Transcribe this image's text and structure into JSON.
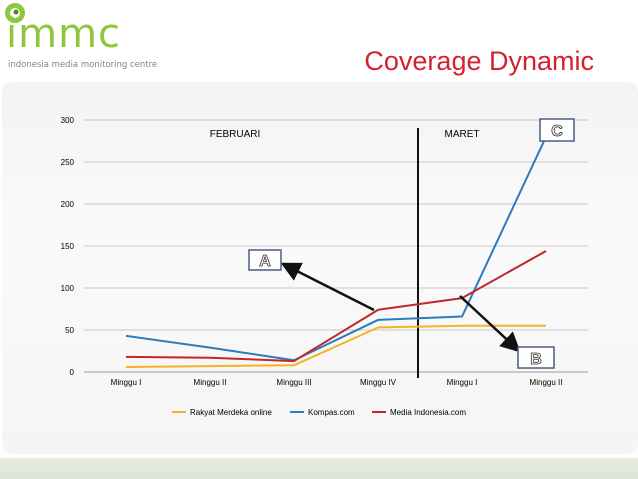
{
  "header": {
    "logo_text": "immc",
    "logo_tagline": "indonesia media monitoring centre",
    "title": "Coverage Dynamic"
  },
  "chart_data": {
    "type": "line",
    "categories": [
      "Minggu I",
      "Minggu II",
      "Minggu III",
      "Minggu IV",
      "Minggu I",
      "Minggu II"
    ],
    "series": [
      {
        "name": "Rakyat Merdeka online",
        "color": "#f5b325",
        "values": [
          6,
          7,
          8,
          53,
          55,
          55
        ]
      },
      {
        "name": "Kompas.com",
        "color": "#2b7bc0",
        "values": [
          43,
          29,
          14,
          62,
          66,
          280
        ]
      },
      {
        "name": "Media Indonesia.com",
        "color": "#c0272d",
        "values": [
          18,
          17,
          13,
          74,
          88,
          144
        ]
      }
    ],
    "ylim": [
      0,
      300
    ],
    "yticks": [
      0,
      50,
      100,
      150,
      200,
      250,
      300
    ],
    "grid": true,
    "legend": "bottom",
    "period_labels": [
      "FEBRUARI",
      "MARET"
    ],
    "callouts": [
      "A",
      "B",
      "C"
    ]
  }
}
